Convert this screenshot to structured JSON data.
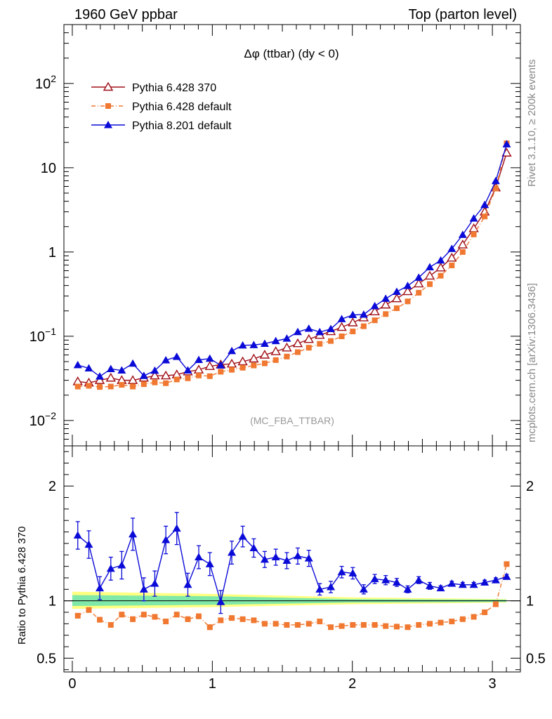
{
  "header": {
    "left": "1960 GeV ppbar",
    "right": "Top (parton level)"
  },
  "side_labels": {
    "rivet": "Rivet 3.1.10, ≥ 200k events",
    "mcplots": "mcplots.cern.ch [arXiv:1306.3436]"
  },
  "chart_data": [
    {
      "type": "line",
      "title": "Δφ (ttbar) (dy < 0)",
      "watermark": "(MC_FBA_TTBAR)",
      "xlim": [
        -0.06,
        3.2
      ],
      "ylim": [
        0.005,
        500
      ],
      "yscale": "log",
      "yticks": [
        {
          "value": 0.01,
          "base": "10",
          "exp": "−2"
        },
        {
          "value": 0.1,
          "base": "10",
          "exp": "−1"
        },
        {
          "value": 1,
          "base": "1",
          "exp": ""
        },
        {
          "value": 10,
          "base": "10",
          "exp": ""
        },
        {
          "value": 100,
          "base": "10",
          "exp": "2"
        }
      ],
      "legend_position": "top-left",
      "x": [
        0.039,
        0.118,
        0.196,
        0.275,
        0.353,
        0.432,
        0.511,
        0.589,
        0.668,
        0.746,
        0.825,
        0.903,
        0.982,
        1.06,
        1.139,
        1.217,
        1.296,
        1.374,
        1.453,
        1.532,
        1.61,
        1.689,
        1.767,
        1.846,
        1.924,
        2.003,
        2.081,
        2.16,
        2.238,
        2.317,
        2.395,
        2.474,
        2.553,
        2.631,
        2.71,
        2.788,
        2.867,
        2.945,
        3.024,
        3.102
      ],
      "series": [
        {
          "name": "Pythia 6.428 370",
          "color": "#a01018",
          "marker": "triangle-open",
          "style": "solid",
          "values": [
            0.029,
            0.028,
            0.03,
            0.032,
            0.03,
            0.03,
            0.032,
            0.034,
            0.034,
            0.035,
            0.038,
            0.04,
            0.044,
            0.046,
            0.047,
            0.05,
            0.054,
            0.06,
            0.066,
            0.073,
            0.082,
            0.092,
            0.103,
            0.114,
            0.128,
            0.145,
            0.166,
            0.196,
            0.236,
            0.28,
            0.34,
            0.42,
            0.52,
            0.65,
            0.85,
            1.22,
            1.9,
            3.0,
            5.8,
            15.0
          ]
        },
        {
          "name": "Pythia 6.428 default",
          "color": "#f07830",
          "marker": "square",
          "style": "dashdot",
          "values": [
            0.0253,
            0.0258,
            0.025,
            0.0253,
            0.0265,
            0.0253,
            0.027,
            0.0283,
            0.0277,
            0.0307,
            0.0317,
            0.0342,
            0.0336,
            0.0379,
            0.04,
            0.0423,
            0.045,
            0.0477,
            0.0521,
            0.0574,
            0.0648,
            0.0731,
            0.0813,
            0.0878,
            0.0998,
            0.1141,
            0.1315,
            0.1546,
            0.1834,
            0.215,
            0.2592,
            0.3284,
            0.4154,
            0.5232,
            0.6928,
            1.0,
            1.6165,
            2.6418,
            5.6628,
            19.5
          ]
        },
        {
          "name": "Pythia 8.201 default",
          "color": "#0b0bd8",
          "marker": "triangle",
          "style": "solid",
          "values": [
            0.0455,
            0.0417,
            0.0333,
            0.0409,
            0.0393,
            0.0474,
            0.0339,
            0.0391,
            0.052,
            0.0571,
            0.0393,
            0.0524,
            0.0543,
            0.0451,
            0.0668,
            0.078,
            0.0787,
            0.0816,
            0.0878,
            0.094,
            0.1124,
            0.1232,
            0.1122,
            0.122,
            0.16,
            0.179,
            0.181,
            0.228,
            0.279,
            0.337,
            0.396,
            0.497,
            0.66,
            0.795,
            1.09,
            1.6,
            2.5,
            3.63,
            6.96,
            19.0
          ]
        }
      ]
    },
    {
      "type": "line",
      "ylabel": "Ratio to Pythia 6.428 370",
      "xlim": [
        -0.06,
        3.2
      ],
      "ylim": [
        0.38,
        2.35
      ],
      "xticks": [
        0,
        1,
        2,
        3
      ],
      "yticks": [
        0.5,
        1,
        2
      ],
      "reference_line": 1,
      "reference_band": {
        "inner_color": "#80e8a8",
        "outer_color": "#ffff80",
        "inner": [
          [
            0.0,
            0.955,
            1.05
          ],
          [
            1.0,
            0.965,
            1.04
          ],
          [
            2.0,
            0.985,
            1.015
          ],
          [
            3.1,
            0.99,
            1.01
          ]
        ],
        "outer": [
          [
            0.0,
            0.93,
            1.08
          ],
          [
            1.0,
            0.945,
            1.06
          ],
          [
            2.0,
            0.97,
            1.03
          ],
          [
            3.1,
            0.985,
            1.015
          ]
        ]
      },
      "series": [
        {
          "name": "Pythia 6.428 default",
          "color": "#f07830",
          "marker": "square",
          "style": "dashdot",
          "values": [
            0.87,
            0.92,
            0.835,
            0.79,
            0.88,
            0.84,
            0.88,
            0.86,
            0.82,
            0.88,
            0.84,
            0.865,
            0.77,
            0.83,
            0.85,
            0.84,
            0.83,
            0.8,
            0.8,
            0.79,
            0.79,
            0.8,
            0.82,
            0.77,
            0.78,
            0.79,
            0.79,
            0.79,
            0.78,
            0.775,
            0.77,
            0.79,
            0.8,
            0.81,
            0.82,
            0.84,
            0.86,
            0.9,
            0.97,
            1.32
          ],
          "errors": [
            0.02,
            0.02,
            0.02,
            0.02,
            0.02,
            0.02,
            0.02,
            0.02,
            0.02,
            0.02,
            0.02,
            0.02,
            0.02,
            0.015,
            0.015,
            0.015,
            0.015,
            0.015,
            0.015,
            0.015,
            0.015,
            0.015,
            0.015,
            0.012,
            0.012,
            0.012,
            0.012,
            0.012,
            0.012,
            0.01,
            0.01,
            0.01,
            0.01,
            0.01,
            0.01,
            0.01,
            0.01,
            0.01,
            0.01,
            0.01
          ]
        },
        {
          "name": "Pythia 8.201 default",
          "color": "#0b0bd8",
          "marker": "triangle",
          "style": "solid",
          "values": [
            1.57,
            1.49,
            1.11,
            1.28,
            1.31,
            1.58,
            1.1,
            1.15,
            1.53,
            1.63,
            1.14,
            1.38,
            1.32,
            0.99,
            1.42,
            1.56,
            1.46,
            1.36,
            1.38,
            1.35,
            1.39,
            1.37,
            1.1,
            1.12,
            1.25,
            1.24,
            1.1,
            1.19,
            1.18,
            1.16,
            1.1,
            1.18,
            1.13,
            1.11,
            1.15,
            1.14,
            1.14,
            1.16,
            1.18,
            1.21
          ],
          "errors": [
            0.12,
            0.12,
            0.1,
            0.1,
            0.12,
            0.14,
            0.1,
            0.11,
            0.12,
            0.14,
            0.1,
            0.1,
            0.1,
            0.1,
            0.1,
            0.09,
            0.08,
            0.07,
            0.07,
            0.07,
            0.07,
            0.07,
            0.05,
            0.05,
            0.05,
            0.05,
            0.04,
            0.04,
            0.04,
            0.035,
            0.03,
            0.03,
            0.03,
            0.02,
            0.02,
            0.02,
            0.02,
            0.02,
            0.02,
            0.02
          ]
        }
      ]
    }
  ]
}
